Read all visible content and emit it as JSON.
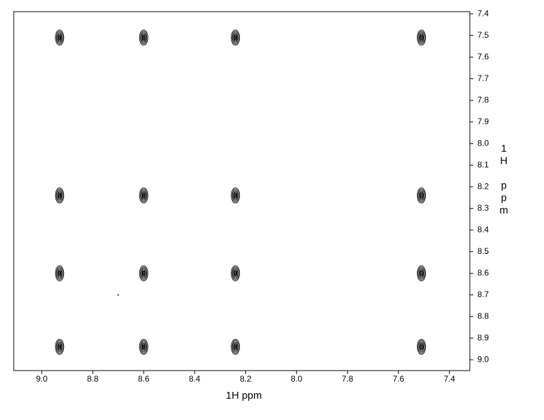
{
  "chart_data": {
    "type": "contour",
    "x_label": "1H ppm",
    "y_label": "1H ppm",
    "xlim": [
      9.11,
      7.32
    ],
    "ylim": [
      7.39,
      9.05
    ],
    "xticks": [
      {
        "value": 9,
        "label": "9.0"
      },
      8.8,
      8.6,
      8.4,
      8.2,
      {
        "value": 8,
        "label": "8.0"
      },
      7.8,
      7.6,
      7.4
    ],
    "yticks": [
      7.4,
      7.5,
      7.6,
      7.7,
      7.8,
      7.9,
      {
        "value": 8,
        "label": "8.0"
      },
      8.1,
      8.2,
      8.3,
      8.4,
      8.5,
      8.6,
      8.7,
      8.8,
      8.9,
      {
        "value": 9,
        "label": "9.0"
      }
    ],
    "series": [
      {
        "marker": "contour",
        "color": "#000000",
        "x": [
          8.93,
          8.6,
          8.24,
          7.51,
          8.93,
          8.6,
          8.24,
          7.51,
          8.93,
          8.6,
          8.24,
          7.51,
          8.93,
          8.6,
          8.24,
          7.51
        ],
        "y": [
          7.51,
          7.51,
          7.51,
          7.51,
          8.24,
          8.24,
          8.24,
          8.24,
          8.6,
          8.6,
          8.6,
          8.6,
          8.94,
          8.94,
          8.94,
          8.94
        ]
      },
      {
        "marker": "dot",
        "color": "#000000",
        "x": [
          8.7
        ],
        "y": [
          8.7
        ]
      }
    ]
  }
}
